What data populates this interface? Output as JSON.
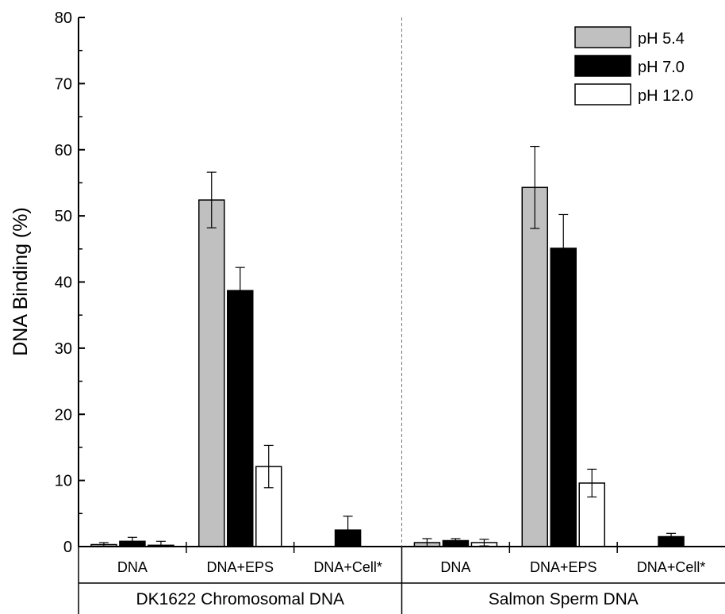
{
  "chart_data": {
    "type": "bar",
    "ylabel": "DNA Binding (%)",
    "ylim": [
      0,
      80
    ],
    "yticks": [
      0,
      10,
      20,
      30,
      40,
      50,
      60,
      70,
      80
    ],
    "legend_position": "top-right",
    "grid": false,
    "groups": [
      {
        "label": "DK1622 Chromosomal DNA",
        "categories": [
          "DNA",
          "DNA+EPS",
          "DNA+Cell*"
        ]
      },
      {
        "label": "Salmon Sperm DNA",
        "categories": [
          "DNA",
          "DNA+EPS",
          "DNA+Cell*"
        ]
      }
    ],
    "series": [
      {
        "name": "pH 5.4",
        "color": "#c0c0c0",
        "values": [
          0.3,
          52.4,
          0,
          0.6,
          54.3,
          0
        ],
        "errors": [
          0.3,
          4.2,
          0,
          0.6,
          6.2,
          0
        ]
      },
      {
        "name": "pH 7.0",
        "color": "#000000",
        "values": [
          0.8,
          38.7,
          2.5,
          0.9,
          45.1,
          1.5
        ],
        "errors": [
          0.6,
          3.5,
          2.1,
          0.3,
          5.1,
          0.5
        ]
      },
      {
        "name": "pH 12.0",
        "color": "#ffffff",
        "values": [
          0.2,
          12.1,
          0,
          0.6,
          9.6,
          0
        ],
        "errors": [
          0.6,
          3.2,
          0,
          0.5,
          2.1,
          0
        ]
      }
    ]
  }
}
